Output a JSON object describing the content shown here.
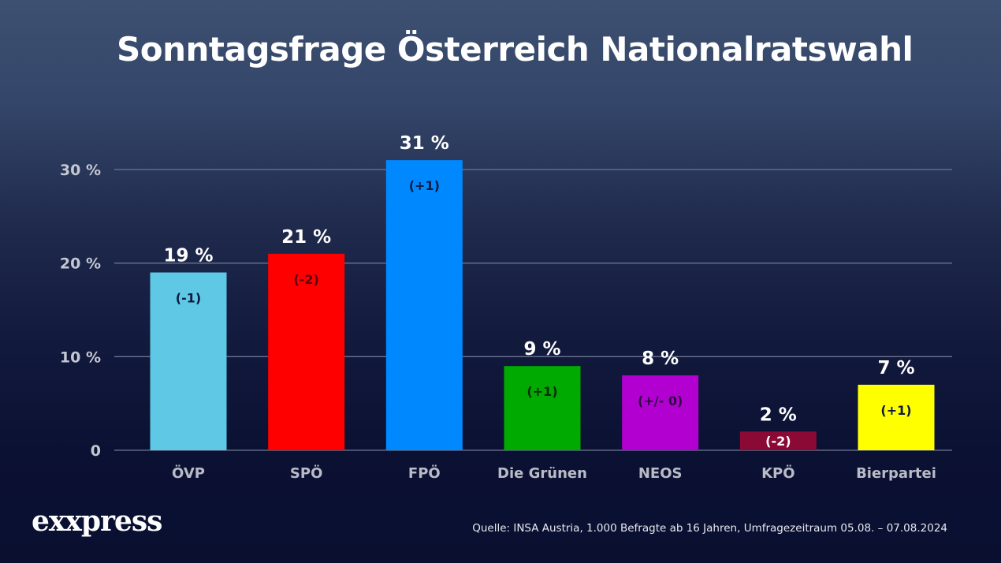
{
  "chart_data": {
    "type": "bar",
    "title": "Sonntagsfrage Österreich Nationalratswahl",
    "xlabel": "",
    "ylabel": "",
    "ylim": [
      0,
      30
    ],
    "grid": true,
    "yticks": [
      0,
      10,
      20,
      30
    ],
    "ytick_labels": [
      "0",
      "10 %",
      "20 %",
      "30 %"
    ],
    "categories": [
      "ÖVP",
      "SPÖ",
      "FPÖ",
      "Die Grünen",
      "NEOS",
      "KPÖ",
      "Bierpartei"
    ],
    "values": [
      19,
      21,
      31,
      9,
      8,
      2,
      7
    ],
    "value_labels": [
      "19 %",
      "21 %",
      "31 %",
      "9 %",
      "8 %",
      "2 %",
      "7 %"
    ],
    "change_labels": [
      "(-1)",
      "(-2)",
      "(+1)",
      "(+1)",
      "(+/- 0)",
      "(-2)",
      "(+1)"
    ],
    "colors": [
      "#5ec8e5",
      "#ff0000",
      "#0088ff",
      "#00aa00",
      "#b100d0",
      "#8a0a35",
      "#ffff00"
    ],
    "change_label_colors": [
      "#0d1a40",
      "#5a0010",
      "#0d1a40",
      "#0d2a0d",
      "#2a0a40",
      "#ffffff",
      "#0d1a40"
    ]
  },
  "footer": {
    "logo": "exxpress",
    "source": "Quelle: INSA Austria, 1.000 Befragte ab 16 Jahren, Umfragezeitraum 05.08. – 07.08.2024"
  }
}
